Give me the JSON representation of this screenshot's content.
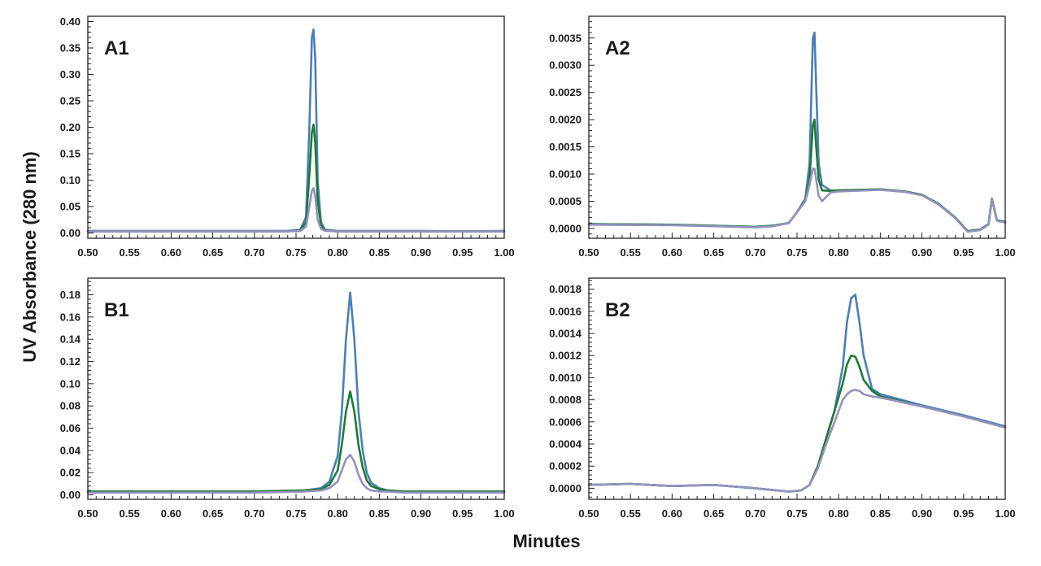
{
  "figure": {
    "ylabel": "UV Absorbance (280 nm)",
    "xlabel": "Minutes"
  },
  "chart_data": [
    {
      "type": "line",
      "panel_label": "A1",
      "xlim": [
        0.5,
        1.0
      ],
      "ylim": [
        -0.01,
        0.41
      ],
      "x_ticks": [
        0.5,
        0.55,
        0.6,
        0.65,
        0.7,
        0.75,
        0.8,
        0.85,
        0.9,
        0.95,
        1.0
      ],
      "x_tick_labels": [
        "0.50",
        "0.55",
        "0.60",
        "0.65",
        "0.70",
        "0.75",
        "0.80",
        "0.85",
        "0.90",
        "0.95",
        "1.00"
      ],
      "y_ticks": [
        0.0,
        0.05,
        0.1,
        0.15,
        0.2,
        0.25,
        0.3,
        0.35,
        0.4
      ],
      "y_tick_labels": [
        "0.00",
        "0.05",
        "0.10",
        "0.15",
        "0.20",
        "0.25",
        "0.30",
        "0.35",
        "0.40"
      ],
      "x": [
        0.5,
        0.6,
        0.7,
        0.74,
        0.755,
        0.762,
        0.766,
        0.769,
        0.771,
        0.773,
        0.776,
        0.78,
        0.785,
        0.8,
        0.85,
        0.9,
        0.95,
        1.0
      ],
      "series": [
        {
          "color": "#4a7fb8",
          "values": [
            0.004,
            0.004,
            0.004,
            0.004,
            0.006,
            0.03,
            0.2,
            0.37,
            0.385,
            0.33,
            0.1,
            0.02,
            0.006,
            0.004,
            0.004,
            0.004,
            0.003,
            0.004
          ]
        },
        {
          "color": "#1e7b32",
          "values": [
            0.003,
            0.003,
            0.003,
            0.003,
            0.005,
            0.02,
            0.11,
            0.19,
            0.205,
            0.17,
            0.06,
            0.015,
            0.005,
            0.003,
            0.003,
            0.003,
            0.003,
            0.003
          ]
        },
        {
          "color": "#9591bf",
          "values": [
            0.003,
            0.003,
            0.003,
            0.003,
            0.004,
            0.012,
            0.05,
            0.08,
            0.085,
            0.07,
            0.025,
            0.008,
            0.004,
            0.003,
            0.003,
            0.003,
            0.003,
            0.003
          ]
        }
      ]
    },
    {
      "type": "line",
      "panel_label": "A2",
      "xlim": [
        0.5,
        1.0
      ],
      "ylim": [
        -0.00018,
        0.0039
      ],
      "x_ticks": [
        0.5,
        0.55,
        0.6,
        0.65,
        0.7,
        0.75,
        0.8,
        0.85,
        0.9,
        0.95,
        1.0
      ],
      "x_tick_labels": [
        "0.50",
        "0.55",
        "0.60",
        "0.65",
        "0.70",
        "0.75",
        "0.80",
        "0.85",
        "0.90",
        "0.95",
        "1.00"
      ],
      "y_ticks": [
        0.0,
        0.0005,
        0.001,
        0.0015,
        0.002,
        0.0025,
        0.003,
        0.0035
      ],
      "y_tick_labels": [
        "0.0000",
        "0.0005",
        "0.0010",
        "0.0015",
        "0.0020",
        "0.0025",
        "0.0030",
        "0.0035"
      ],
      "x": [
        0.5,
        0.6,
        0.7,
        0.72,
        0.74,
        0.75,
        0.76,
        0.765,
        0.769,
        0.771,
        0.773,
        0.776,
        0.78,
        0.79,
        0.8,
        0.85,
        0.88,
        0.9,
        0.92,
        0.94,
        0.955,
        0.97,
        0.98,
        0.984,
        0.987,
        0.99,
        1.0
      ],
      "series": [
        {
          "color": "#4a7fb8",
          "values": [
            8e-05,
            7e-05,
            3e-05,
            5e-05,
            0.0001,
            0.0003,
            0.00055,
            0.0012,
            0.0035,
            0.0036,
            0.0026,
            0.0012,
            0.0008,
            0.0007,
            0.00069,
            0.00072,
            0.00068,
            0.00062,
            0.00045,
            0.0002,
            -5e-05,
            -2e-05,
            8e-05,
            0.00055,
            0.00035,
            0.00015,
            0.00012
          ]
        },
        {
          "color": "#1e7b32",
          "values": [
            8e-05,
            7e-05,
            3e-05,
            5e-05,
            0.0001,
            0.0003,
            0.00052,
            0.0009,
            0.0019,
            0.002,
            0.0015,
            0.0009,
            0.0007,
            0.00069,
            0.0007,
            0.00072,
            0.00068,
            0.00062,
            0.00045,
            0.0002,
            -5e-05,
            -2e-05,
            8e-05,
            0.00055,
            0.00035,
            0.00015,
            0.00012
          ]
        },
        {
          "color": "#9591bf",
          "values": [
            7e-05,
            6e-05,
            2e-05,
            4e-05,
            0.0001,
            0.0003,
            0.0005,
            0.0008,
            0.0011,
            0.0011,
            0.0009,
            0.0006,
            0.0005,
            0.00066,
            0.00068,
            0.00071,
            0.00067,
            0.00061,
            0.00044,
            0.00019,
            -6e-05,
            -3e-05,
            7e-05,
            0.00054,
            0.00034,
            0.00014,
            0.00011
          ]
        }
      ]
    },
    {
      "type": "line",
      "panel_label": "B1",
      "xlim": [
        0.5,
        1.0
      ],
      "ylim": [
        -0.004,
        0.195
      ],
      "x_ticks": [
        0.5,
        0.55,
        0.6,
        0.65,
        0.7,
        0.75,
        0.8,
        0.85,
        0.9,
        0.95,
        1.0
      ],
      "x_tick_labels": [
        "0.50",
        "0.55",
        "0.60",
        "0.65",
        "0.70",
        "0.75",
        "0.80",
        "0.85",
        "0.90",
        "0.95",
        "1.00"
      ],
      "y_ticks": [
        0.0,
        0.02,
        0.04,
        0.06,
        0.08,
        0.1,
        0.12,
        0.14,
        0.16,
        0.18
      ],
      "y_tick_labels": [
        "0.00",
        "0.02",
        "0.04",
        "0.06",
        "0.08",
        "0.10",
        "0.12",
        "0.14",
        "0.16",
        "0.18"
      ],
      "x": [
        0.5,
        0.7,
        0.76,
        0.78,
        0.79,
        0.8,
        0.805,
        0.81,
        0.815,
        0.82,
        0.825,
        0.83,
        0.835,
        0.84,
        0.85,
        0.86,
        0.88,
        0.9,
        1.0
      ],
      "series": [
        {
          "color": "#4a7fb8",
          "values": [
            0.003,
            0.003,
            0.004,
            0.006,
            0.012,
            0.035,
            0.075,
            0.14,
            0.182,
            0.14,
            0.075,
            0.04,
            0.02,
            0.011,
            0.006,
            0.004,
            0.003,
            0.003,
            0.003
          ]
        },
        {
          "color": "#1e7b32",
          "values": [
            0.003,
            0.003,
            0.004,
            0.005,
            0.009,
            0.022,
            0.045,
            0.075,
            0.093,
            0.075,
            0.045,
            0.025,
            0.013,
            0.008,
            0.005,
            0.004,
            0.003,
            0.003,
            0.003
          ]
        },
        {
          "color": "#9591bf",
          "values": [
            0.002,
            0.002,
            0.003,
            0.004,
            0.006,
            0.012,
            0.022,
            0.032,
            0.036,
            0.03,
            0.018,
            0.01,
            0.006,
            0.004,
            0.003,
            0.003,
            0.002,
            0.002,
            0.002
          ]
        }
      ]
    },
    {
      "type": "line",
      "panel_label": "B2",
      "xlim": [
        0.5,
        1.0
      ],
      "ylim": [
        -0.0001,
        0.0019
      ],
      "x_ticks": [
        0.5,
        0.55,
        0.6,
        0.65,
        0.7,
        0.75,
        0.8,
        0.85,
        0.9,
        0.95,
        1.0
      ],
      "x_tick_labels": [
        "0.50",
        "0.55",
        "0.60",
        "0.65",
        "0.70",
        "0.75",
        "0.80",
        "0.85",
        "0.90",
        "0.95",
        "1.00"
      ],
      "y_ticks": [
        0.0,
        0.0002,
        0.0004,
        0.0006,
        0.0008,
        0.001,
        0.0012,
        0.0014,
        0.0016,
        0.0018
      ],
      "y_tick_labels": [
        "0.0000",
        "0.0002",
        "0.0004",
        "0.0006",
        "0.0008",
        "0.0010",
        "0.0012",
        "0.0014",
        "0.0016",
        "0.0018"
      ],
      "x": [
        0.5,
        0.55,
        0.6,
        0.65,
        0.7,
        0.74,
        0.755,
        0.765,
        0.775,
        0.785,
        0.795,
        0.805,
        0.81,
        0.815,
        0.82,
        0.825,
        0.83,
        0.84,
        0.85,
        0.9,
        0.95,
        1.0
      ],
      "series": [
        {
          "color": "#4a7fb8",
          "values": [
            3e-05,
            4e-05,
            2e-05,
            3e-05,
            0.0,
            -3e-05,
            -2e-05,
            3e-05,
            0.0002,
            0.00045,
            0.0007,
            0.0011,
            0.0015,
            0.00172,
            0.00175,
            0.0015,
            0.0012,
            0.0009,
            0.00085,
            0.00075,
            0.00066,
            0.00056
          ]
        },
        {
          "color": "#1e7b32",
          "values": [
            3e-05,
            4e-05,
            2e-05,
            3e-05,
            0.0,
            -3e-05,
            -2e-05,
            3e-05,
            0.0002,
            0.00045,
            0.0007,
            0.00095,
            0.00112,
            0.0012,
            0.00119,
            0.0011,
            0.00098,
            0.00088,
            0.00083,
            0.00074,
            0.00065,
            0.00055
          ]
        },
        {
          "color": "#9591bf",
          "values": [
            3e-05,
            4e-05,
            2e-05,
            3e-05,
            0.0,
            -3e-05,
            -2e-05,
            3e-05,
            0.00018,
            0.0004,
            0.0006,
            0.0008,
            0.00085,
            0.00088,
            0.00089,
            0.00088,
            0.00085,
            0.00083,
            0.00082,
            0.00074,
            0.00065,
            0.00055
          ]
        }
      ]
    }
  ]
}
